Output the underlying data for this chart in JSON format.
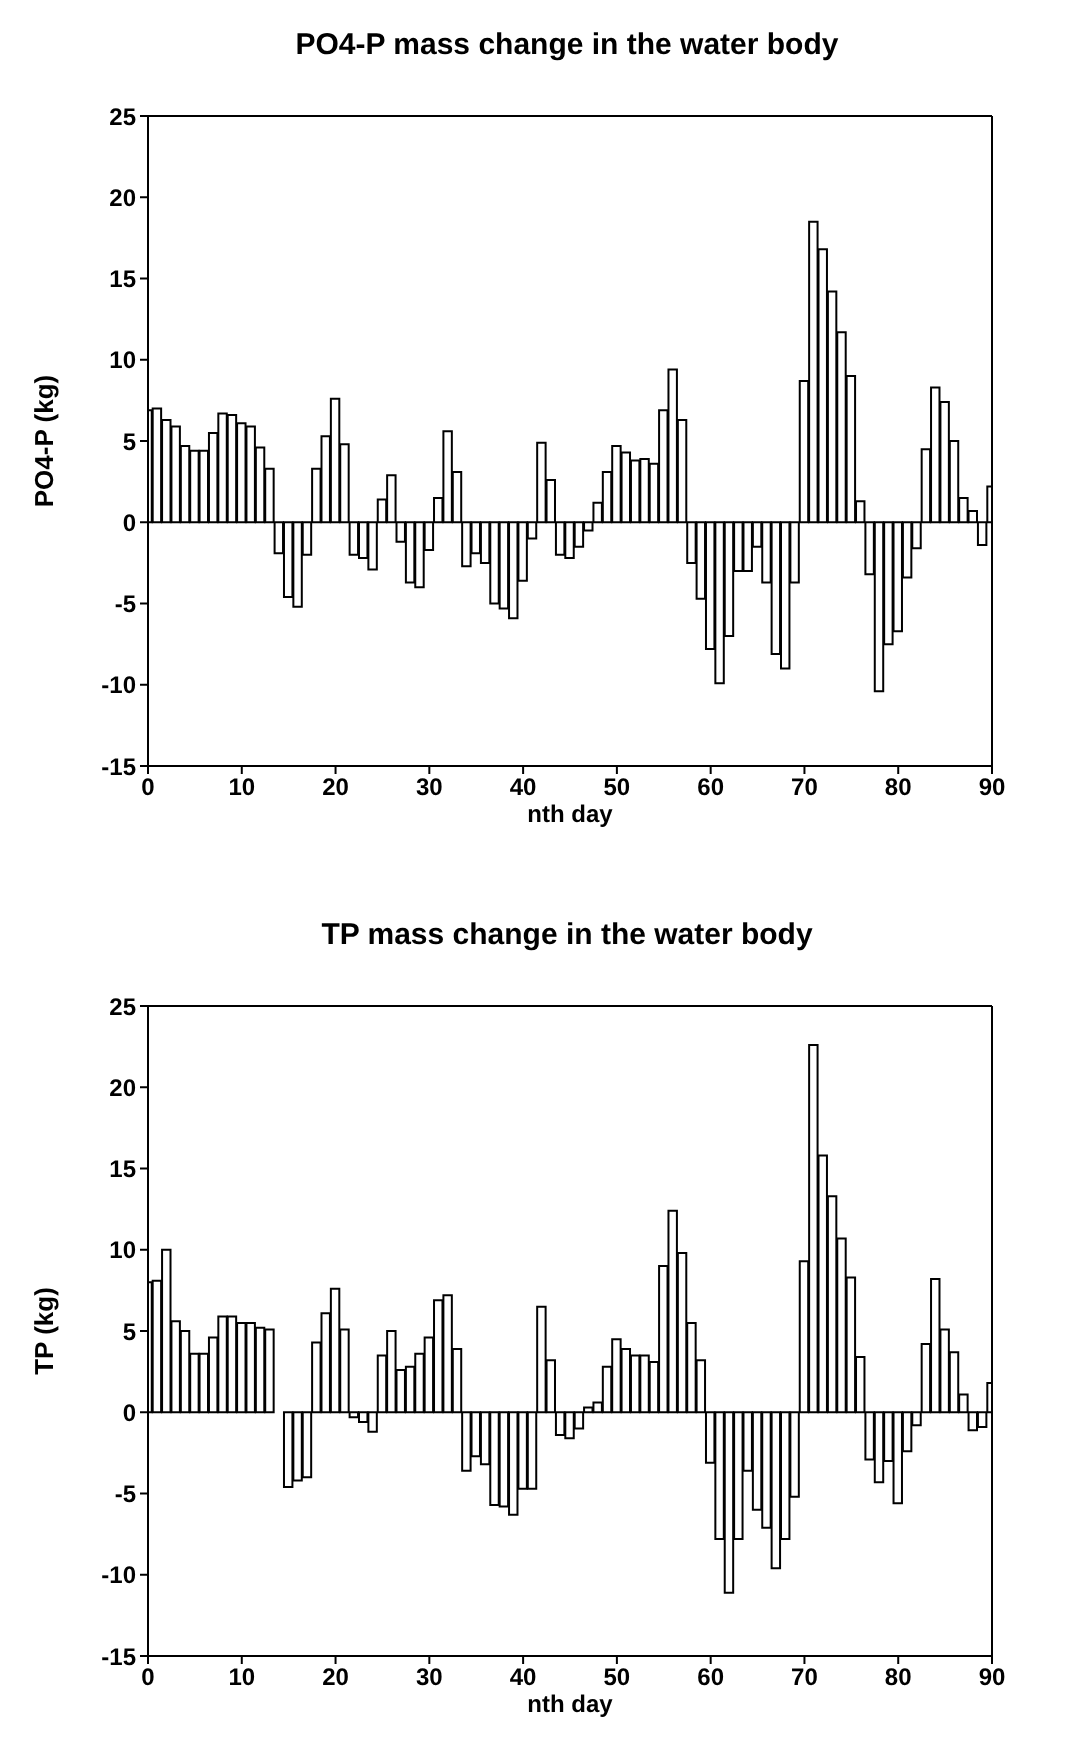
{
  "chart_data": [
    {
      "type": "bar",
      "title": "PO4-P mass change in the water body",
      "xlabel": "nth day",
      "ylabel": "PO4-P (kg)",
      "color": "#ffffff",
      "x": [
        0,
        1,
        2,
        3,
        4,
        5,
        6,
        7,
        8,
        9,
        10,
        11,
        12,
        13,
        14,
        15,
        16,
        17,
        18,
        19,
        20,
        21,
        22,
        23,
        24,
        25,
        26,
        27,
        28,
        29,
        30,
        31,
        32,
        33,
        34,
        35,
        36,
        37,
        38,
        39,
        40,
        41,
        42,
        43,
        44,
        45,
        46,
        47,
        48,
        49,
        50,
        51,
        52,
        53,
        54,
        55,
        56,
        57,
        58,
        59,
        60,
        61,
        62,
        63,
        64,
        65,
        66,
        67,
        68,
        69,
        70,
        71,
        72,
        73,
        74,
        75,
        76,
        77,
        78,
        79,
        80,
        81,
        82,
        83,
        84,
        85,
        86,
        87,
        88,
        89,
        90
      ],
      "values": [
        6.9,
        7.0,
        6.3,
        5.9,
        4.7,
        4.4,
        4.4,
        5.5,
        6.7,
        6.6,
        6.1,
        5.9,
        4.6,
        3.3,
        -1.9,
        -4.6,
        -5.2,
        -2.0,
        3.3,
        5.3,
        7.6,
        4.8,
        -2.0,
        -2.2,
        -2.9,
        1.4,
        2.9,
        -1.2,
        -3.7,
        -4.0,
        -1.7,
        1.5,
        5.6,
        3.1,
        -2.7,
        -1.9,
        -2.5,
        -5.0,
        -5.3,
        -5.9,
        -3.6,
        -1.0,
        4.9,
        2.6,
        -2.0,
        -2.2,
        -1.5,
        -0.5,
        1.2,
        3.1,
        4.7,
        4.3,
        3.8,
        3.9,
        3.6,
        6.9,
        9.4,
        6.3,
        -2.5,
        -4.7,
        -7.8,
        -9.9,
        -7.0,
        -3.0,
        -3.0,
        -1.5,
        -3.7,
        -8.1,
        -9.0,
        -3.7,
        8.7,
        18.5,
        16.8,
        14.2,
        11.7,
        9.0,
        1.3,
        -3.2,
        -10.4,
        -7.5,
        -6.7,
        -3.4,
        -1.6,
        4.5,
        8.3,
        7.4,
        5.0,
        1.5,
        0.7,
        -1.4,
        2.2
      ],
      "xlim": [
        0,
        90
      ],
      "xticks": [
        0,
        10,
        20,
        30,
        40,
        50,
        60,
        70,
        80,
        90
      ],
      "ylim": [
        -15,
        25
      ],
      "yticks": [
        -15,
        -10,
        -5,
        0,
        5,
        10,
        15,
        20,
        25
      ],
      "grid": false,
      "legend": false
    },
    {
      "type": "bar",
      "title": "TP mass change in the water body",
      "xlabel": "nth day",
      "ylabel": "TP (kg)",
      "color": "#ffffff",
      "x": [
        0,
        1,
        2,
        3,
        4,
        5,
        6,
        7,
        8,
        9,
        10,
        11,
        12,
        13,
        14,
        15,
        16,
        17,
        18,
        19,
        20,
        21,
        22,
        23,
        24,
        25,
        26,
        27,
        28,
        29,
        30,
        31,
        32,
        33,
        34,
        35,
        36,
        37,
        38,
        39,
        40,
        41,
        42,
        43,
        44,
        45,
        46,
        47,
        48,
        49,
        50,
        51,
        52,
        53,
        54,
        55,
        56,
        57,
        58,
        59,
        60,
        61,
        62,
        63,
        64,
        65,
        66,
        67,
        68,
        69,
        70,
        71,
        72,
        73,
        74,
        75,
        76,
        77,
        78,
        79,
        80,
        81,
        82,
        83,
        84,
        85,
        86,
        87,
        88,
        89,
        90
      ],
      "values": [
        8.0,
        8.1,
        10.0,
        5.6,
        5.0,
        3.6,
        3.6,
        4.6,
        5.9,
        5.9,
        5.5,
        5.5,
        5.2,
        5.1,
        0,
        -4.6,
        -4.2,
        -4.0,
        4.3,
        6.1,
        7.6,
        5.1,
        -0.3,
        -0.6,
        -1.2,
        3.5,
        5.0,
        2.6,
        2.8,
        3.6,
        4.6,
        6.9,
        7.2,
        3.9,
        -3.6,
        -2.7,
        -3.2,
        -5.7,
        -5.8,
        -6.3,
        -4.7,
        -4.7,
        6.5,
        3.2,
        -1.4,
        -1.6,
        -1.0,
        0.3,
        0.6,
        2.8,
        4.5,
        3.9,
        3.5,
        3.5,
        3.1,
        9.0,
        12.4,
        9.8,
        5.5,
        3.2,
        -3.1,
        -7.8,
        -11.1,
        -7.8,
        -3.6,
        -6.0,
        -7.1,
        -9.6,
        -7.8,
        -5.2,
        9.3,
        22.6,
        15.8,
        13.3,
        10.7,
        8.3,
        3.4,
        -2.9,
        -4.3,
        -3.0,
        -5.6,
        -2.4,
        -0.8,
        4.2,
        8.2,
        5.1,
        3.7,
        1.1,
        -1.1,
        -0.9,
        1.8
      ],
      "xlim": [
        0,
        90
      ],
      "xticks": [
        0,
        10,
        20,
        30,
        40,
        50,
        60,
        70,
        80,
        90
      ],
      "ylim": [
        -15,
        25
      ],
      "yticks": [
        -15,
        -10,
        -5,
        0,
        5,
        10,
        15,
        20,
        25
      ],
      "grid": false,
      "legend": false
    }
  ]
}
